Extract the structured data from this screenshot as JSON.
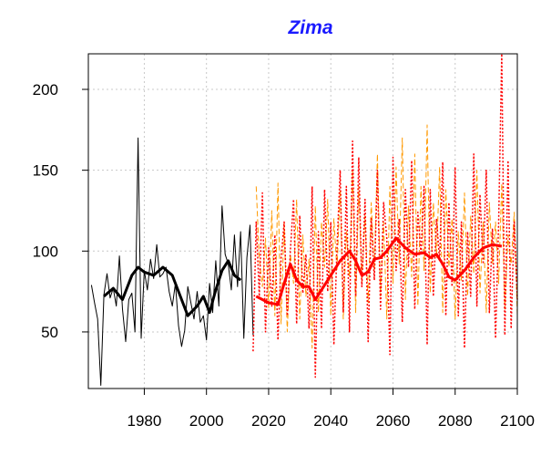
{
  "chart_data": {
    "type": "line",
    "title": "Zima",
    "xlabel": "",
    "ylabel": "",
    "xlim": [
      1962,
      2100
    ],
    "ylim": [
      15,
      222
    ],
    "xticks": [
      1980,
      2000,
      2020,
      2040,
      2060,
      2080,
      2100
    ],
    "yticks": [
      50,
      100,
      150,
      200
    ],
    "grid": true,
    "legend": "none",
    "series": [
      {
        "style": "solid",
        "color": "#000000",
        "width": 1,
        "points": [
          [
            1963,
            79
          ],
          [
            1964,
            68
          ],
          [
            1965,
            58
          ],
          [
            1966,
            17
          ],
          [
            1967,
            73
          ],
          [
            1968,
            86
          ],
          [
            1969,
            71
          ],
          [
            1970,
            77
          ],
          [
            1971,
            66
          ],
          [
            1972,
            97
          ],
          [
            1973,
            64
          ],
          [
            1974,
            44
          ],
          [
            1975,
            70
          ],
          [
            1976,
            74
          ],
          [
            1977,
            50
          ],
          [
            1978,
            170
          ],
          [
            1979,
            46
          ],
          [
            1980,
            88
          ],
          [
            1981,
            76
          ],
          [
            1982,
            95
          ],
          [
            1983,
            83
          ],
          [
            1984,
            104
          ],
          [
            1985,
            84
          ],
          [
            1986,
            86
          ],
          [
            1987,
            90
          ],
          [
            1988,
            75
          ],
          [
            1989,
            66
          ],
          [
            1990,
            80
          ],
          [
            1991,
            54
          ],
          [
            1992,
            41
          ],
          [
            1993,
            51
          ],
          [
            1994,
            78
          ],
          [
            1995,
            68
          ],
          [
            1996,
            58
          ],
          [
            1997,
            75
          ],
          [
            1998,
            56
          ],
          [
            1999,
            60
          ],
          [
            2000,
            45
          ],
          [
            2001,
            80
          ],
          [
            2002,
            62
          ],
          [
            2003,
            94
          ],
          [
            2004,
            66
          ],
          [
            2005,
            128
          ],
          [
            2006,
            98
          ],
          [
            2007,
            92
          ],
          [
            2008,
            76
          ],
          [
            2009,
            110
          ],
          [
            2010,
            78
          ],
          [
            2011,
            112
          ],
          [
            2012,
            46
          ],
          [
            2013,
            96
          ],
          [
            2014,
            116
          ],
          [
            2015,
            48
          ]
        ]
      },
      {
        "style": "solid",
        "color": "#000000",
        "width": 3,
        "points": [
          [
            1967,
            72
          ],
          [
            1970,
            77
          ],
          [
            1973,
            70
          ],
          [
            1976,
            85
          ],
          [
            1978,
            90
          ],
          [
            1980,
            87
          ],
          [
            1983,
            85
          ],
          [
            1986,
            90
          ],
          [
            1989,
            85
          ],
          [
            1992,
            70
          ],
          [
            1994,
            60
          ],
          [
            1997,
            66
          ],
          [
            1999,
            72
          ],
          [
            2001,
            62
          ],
          [
            2003,
            76
          ],
          [
            2005,
            88
          ],
          [
            2007,
            94
          ],
          [
            2009,
            85
          ],
          [
            2011,
            82
          ]
        ]
      },
      {
        "style": "dashed",
        "color": "#ff9900",
        "width": 1,
        "points": [
          [
            2016,
            140
          ],
          [
            2017,
            95
          ],
          [
            2018,
            78
          ],
          [
            2019,
            108
          ],
          [
            2020,
            65
          ],
          [
            2021,
            125
          ],
          [
            2022,
            60
          ],
          [
            2023,
            142
          ],
          [
            2024,
            55
          ],
          [
            2025,
            118
          ],
          [
            2026,
            50
          ],
          [
            2027,
            98
          ],
          [
            2028,
            80
          ],
          [
            2029,
            132
          ],
          [
            2030,
            58
          ],
          [
            2031,
            110
          ],
          [
            2032,
            72
          ],
          [
            2033,
            95
          ],
          [
            2034,
            40
          ],
          [
            2035,
            128
          ],
          [
            2036,
            62
          ],
          [
            2037,
            118
          ],
          [
            2038,
            90
          ],
          [
            2039,
            132
          ],
          [
            2040,
            60
          ],
          [
            2041,
            120
          ],
          [
            2042,
            88
          ],
          [
            2043,
            138
          ],
          [
            2044,
            58
          ],
          [
            2045,
            112
          ],
          [
            2046,
            84
          ],
          [
            2047,
            150
          ],
          [
            2048,
            62
          ],
          [
            2049,
            140
          ],
          [
            2050,
            80
          ],
          [
            2051,
            122
          ],
          [
            2052,
            68
          ],
          [
            2053,
            130
          ],
          [
            2054,
            88
          ],
          [
            2055,
            160
          ],
          [
            2056,
            72
          ],
          [
            2057,
            118
          ],
          [
            2058,
            58
          ],
          [
            2059,
            140
          ],
          [
            2060,
            80
          ],
          [
            2061,
            152
          ],
          [
            2062,
            92
          ],
          [
            2063,
            170
          ],
          [
            2064,
            70
          ],
          [
            2065,
            128
          ],
          [
            2066,
            84
          ],
          [
            2067,
            160
          ],
          [
            2068,
            66
          ],
          [
            2069,
            140
          ],
          [
            2070,
            88
          ],
          [
            2071,
            178
          ],
          [
            2072,
            74
          ],
          [
            2073,
            130
          ],
          [
            2074,
            96
          ],
          [
            2075,
            152
          ],
          [
            2076,
            62
          ],
          [
            2077,
            138
          ],
          [
            2078,
            90
          ],
          [
            2079,
            120
          ],
          [
            2080,
            58
          ],
          [
            2081,
            112
          ],
          [
            2082,
            82
          ],
          [
            2083,
            136
          ],
          [
            2084,
            72
          ],
          [
            2085,
            122
          ],
          [
            2086,
            86
          ],
          [
            2087,
            150
          ],
          [
            2088,
            74
          ],
          [
            2089,
            118
          ],
          [
            2090,
            62
          ],
          [
            2091,
            130
          ],
          [
            2092,
            92
          ],
          [
            2093,
            118
          ],
          [
            2094,
            80
          ],
          [
            2095,
            142
          ],
          [
            2096,
            64
          ],
          [
            2097,
            110
          ],
          [
            2098,
            92
          ],
          [
            2099,
            124
          ],
          [
            2100,
            60
          ]
        ]
      },
      {
        "style": "dotted",
        "color": "#ff0000",
        "width": 1.5,
        "points": [
          [
            2015,
            38
          ],
          [
            2016,
            118
          ],
          [
            2017,
            72
          ],
          [
            2018,
            136
          ],
          [
            2019,
            50
          ],
          [
            2020,
            102
          ],
          [
            2021,
            66
          ],
          [
            2022,
            110
          ],
          [
            2023,
            45
          ],
          [
            2024,
            95
          ],
          [
            2025,
            118
          ],
          [
            2026,
            60
          ],
          [
            2027,
            100
          ],
          [
            2028,
            132
          ],
          [
            2029,
            55
          ],
          [
            2030,
            122
          ],
          [
            2031,
            74
          ],
          [
            2032,
            98
          ],
          [
            2033,
            52
          ],
          [
            2034,
            140
          ],
          [
            2035,
            22
          ],
          [
            2036,
            112
          ],
          [
            2037,
            52
          ],
          [
            2038,
            138
          ],
          [
            2039,
            75
          ],
          [
            2040,
            118
          ],
          [
            2041,
            42
          ],
          [
            2042,
            102
          ],
          [
            2043,
            150
          ],
          [
            2044,
            62
          ],
          [
            2045,
            140
          ],
          [
            2046,
            50
          ],
          [
            2047,
            168
          ],
          [
            2048,
            72
          ],
          [
            2049,
            158
          ],
          [
            2050,
            78
          ],
          [
            2051,
            132
          ],
          [
            2052,
            44
          ],
          [
            2053,
            120
          ],
          [
            2054,
            82
          ],
          [
            2055,
            150
          ],
          [
            2056,
            64
          ],
          [
            2057,
            130
          ],
          [
            2058,
            108
          ],
          [
            2059,
            36
          ],
          [
            2060,
            158
          ],
          [
            2061,
            88
          ],
          [
            2062,
            120
          ],
          [
            2063,
            56
          ],
          [
            2064,
            138
          ],
          [
            2065,
            90
          ],
          [
            2066,
            156
          ],
          [
            2067,
            64
          ],
          [
            2068,
            124
          ],
          [
            2069,
            98
          ],
          [
            2070,
            140
          ],
          [
            2071,
            42
          ],
          [
            2072,
            138
          ],
          [
            2073,
            72
          ],
          [
            2074,
            120
          ],
          [
            2075,
            94
          ],
          [
            2076,
            155
          ],
          [
            2077,
            60
          ],
          [
            2078,
            130
          ],
          [
            2079,
            78
          ],
          [
            2080,
            152
          ],
          [
            2081,
            60
          ],
          [
            2082,
            118
          ],
          [
            2083,
            40
          ],
          [
            2084,
            112
          ],
          [
            2085,
            72
          ],
          [
            2086,
            160
          ],
          [
            2087,
            66
          ],
          [
            2088,
            135
          ],
          [
            2089,
            92
          ],
          [
            2090,
            150
          ],
          [
            2091,
            62
          ],
          [
            2092,
            114
          ],
          [
            2093,
            46
          ],
          [
            2094,
            118
          ],
          [
            2095,
            222
          ],
          [
            2096,
            48
          ],
          [
            2097,
            156
          ],
          [
            2098,
            52
          ],
          [
            2099,
            118
          ],
          [
            2100,
            70
          ]
        ]
      },
      {
        "style": "solid",
        "color": "#ff0000",
        "width": 3,
        "points": [
          [
            2016,
            72
          ],
          [
            2020,
            68
          ],
          [
            2023,
            67
          ],
          [
            2025,
            80
          ],
          [
            2027,
            92
          ],
          [
            2029,
            82
          ],
          [
            2031,
            78
          ],
          [
            2033,
            78
          ],
          [
            2035,
            70
          ],
          [
            2037,
            76
          ],
          [
            2040,
            85
          ],
          [
            2043,
            94
          ],
          [
            2046,
            100
          ],
          [
            2048,
            94
          ],
          [
            2050,
            85
          ],
          [
            2052,
            87
          ],
          [
            2054,
            95
          ],
          [
            2056,
            96
          ],
          [
            2058,
            100
          ],
          [
            2061,
            108
          ],
          [
            2064,
            102
          ],
          [
            2067,
            98
          ],
          [
            2070,
            99
          ],
          [
            2072,
            96
          ],
          [
            2074,
            98
          ],
          [
            2076,
            92
          ],
          [
            2078,
            84
          ],
          [
            2080,
            82
          ],
          [
            2083,
            88
          ],
          [
            2086,
            96
          ],
          [
            2089,
            102
          ],
          [
            2092,
            104
          ],
          [
            2095,
            103
          ]
        ]
      }
    ]
  }
}
